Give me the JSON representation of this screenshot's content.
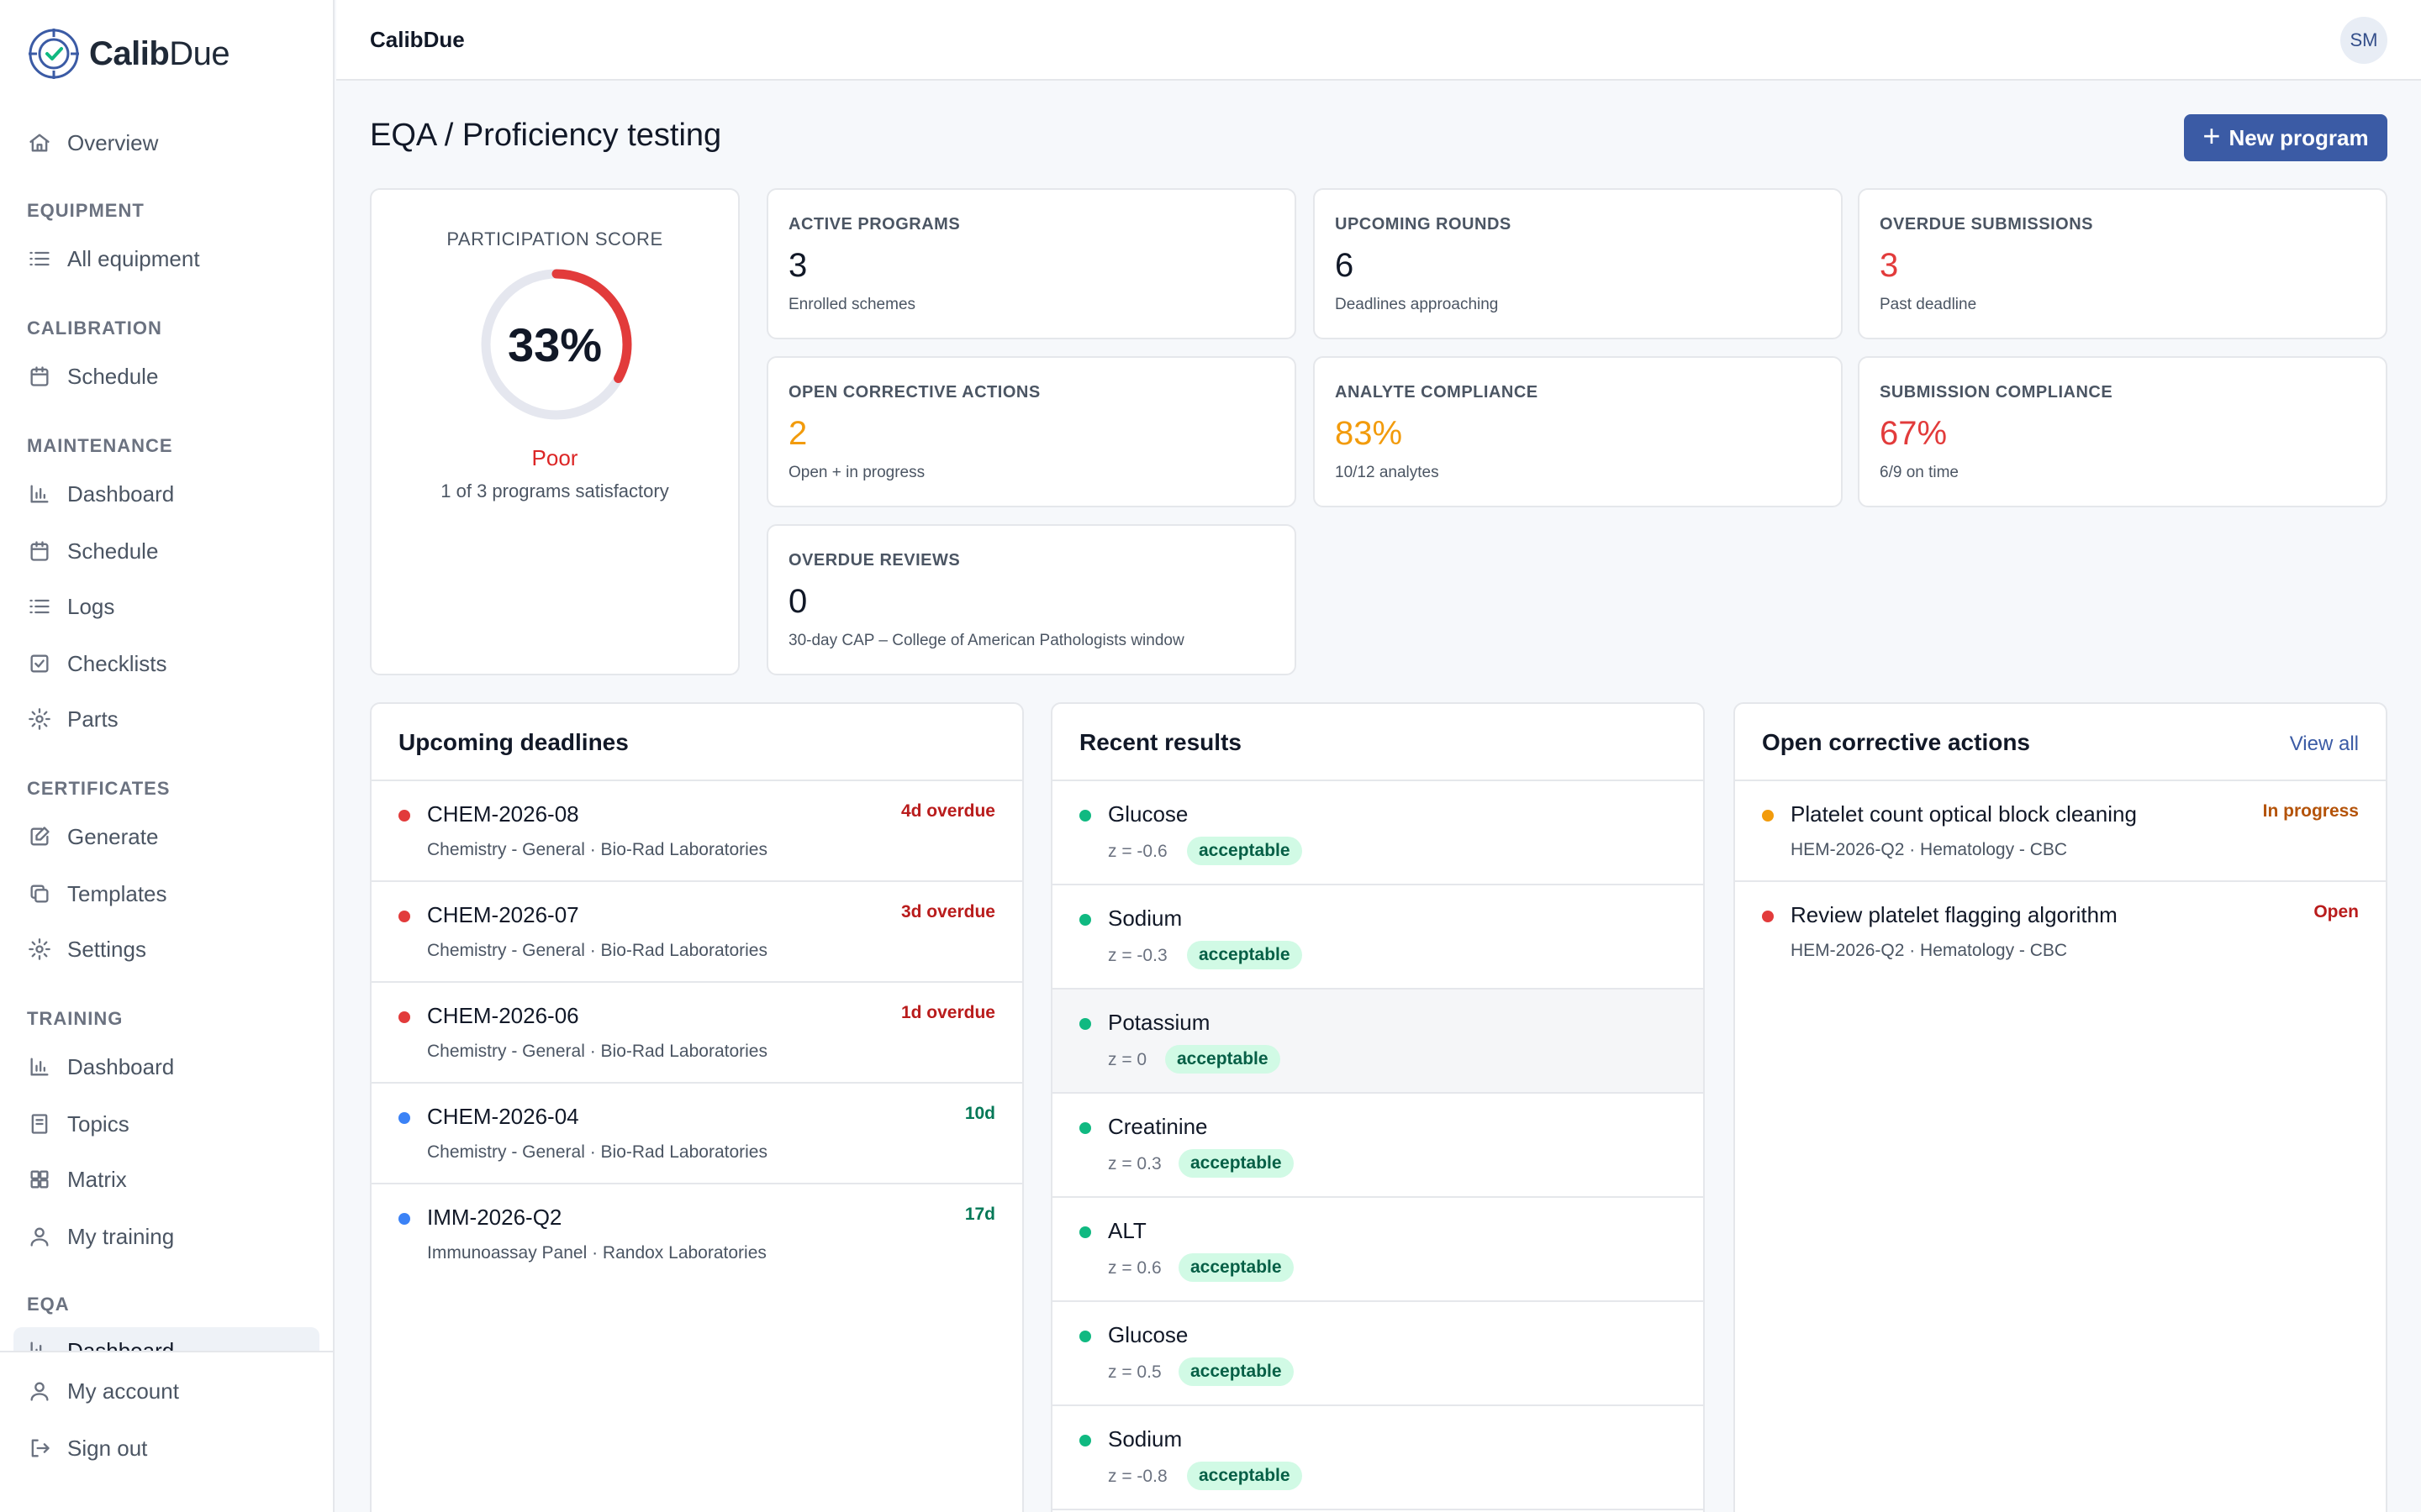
{
  "brand": {
    "name_bold": "Calib",
    "name_light": "Due"
  },
  "sidebar": {
    "overview": "Overview",
    "sections": {
      "equipment": "EQUIPMENT",
      "calibration": "CALIBRATION",
      "maintenance": "MAINTENANCE",
      "certificates": "CERTIFICATES",
      "training": "TRAINING",
      "eqa": "EQA"
    },
    "items": {
      "all_equipment": "All equipment",
      "cal_schedule": "Schedule",
      "maint_dashboard": "Dashboard",
      "maint_schedule": "Schedule",
      "logs": "Logs",
      "checklists": "Checklists",
      "parts": "Parts",
      "generate": "Generate",
      "templates": "Templates",
      "settings": "Settings",
      "train_dashboard": "Dashboard",
      "topics": "Topics",
      "matrix": "Matrix",
      "my_training": "My training",
      "eqa_dashboard": "Dashboard"
    },
    "bottom": {
      "my_account": "My account",
      "sign_out": "Sign out"
    }
  },
  "header": {
    "title": "CalibDue",
    "avatar": "SM"
  },
  "page": {
    "title": "EQA / Proficiency testing",
    "new_button": "New program"
  },
  "score": {
    "label": "PARTICIPATION SCORE",
    "value": "33%",
    "fraction": 0.33,
    "rating": "Poor",
    "subtitle": "1 of 3 programs satisfactory",
    "color": "#e23b3b"
  },
  "stats": {
    "active_programs": {
      "label": "ACTIVE PROGRAMS",
      "value": "3",
      "sub": "Enrolled schemes"
    },
    "upcoming_rounds": {
      "label": "UPCOMING ROUNDS",
      "value": "6",
      "sub": "Deadlines approaching"
    },
    "overdue_submissions": {
      "label": "OVERDUE SUBMISSIONS",
      "value": "3",
      "sub": "Past deadline"
    },
    "open_corrective": {
      "label": "OPEN CORRECTIVE ACTIONS",
      "value": "2",
      "sub": "Open + in progress"
    },
    "analyte_compliance": {
      "label": "ANALYTE COMPLIANCE",
      "value": "83%",
      "sub": "10/12 analytes"
    },
    "submission_compliance": {
      "label": "SUBMISSION COMPLIANCE",
      "value": "67%",
      "sub": "6/9 on time"
    },
    "overdue_reviews": {
      "label": "OVERDUE REVIEWS",
      "value": "0",
      "sub": "30-day CAP – College of American Pathologists window"
    }
  },
  "deadlines": {
    "title": "Upcoming deadlines",
    "rows": [
      {
        "code": "CHEM-2026-08",
        "detail": "Chemistry - General · Bio-Rad Laboratories",
        "due": "4d overdue",
        "status": "overdue"
      },
      {
        "code": "CHEM-2026-07",
        "detail": "Chemistry - General · Bio-Rad Laboratories",
        "due": "3d overdue",
        "status": "overdue"
      },
      {
        "code": "CHEM-2026-06",
        "detail": "Chemistry - General · Bio-Rad Laboratories",
        "due": "1d overdue",
        "status": "overdue"
      },
      {
        "code": "CHEM-2026-04",
        "detail": "Chemistry - General · Bio-Rad Laboratories",
        "due": "10d",
        "status": "upcoming"
      },
      {
        "code": "IMM-2026-Q2",
        "detail": "Immunoassay Panel · Randox Laboratories",
        "due": "17d",
        "status": "upcoming"
      }
    ]
  },
  "results": {
    "title": "Recent results",
    "rows": [
      {
        "analyte": "Glucose",
        "z": "z = -0.6",
        "result": "acceptable"
      },
      {
        "analyte": "Sodium",
        "z": "z = -0.3",
        "result": "acceptable"
      },
      {
        "analyte": "Potassium",
        "z": "z = 0",
        "result": "acceptable"
      },
      {
        "analyte": "Creatinine",
        "z": "z = 0.3",
        "result": "acceptable"
      },
      {
        "analyte": "ALT",
        "z": "z = 0.6",
        "result": "acceptable"
      },
      {
        "analyte": "Glucose",
        "z": "z = 0.5",
        "result": "acceptable"
      },
      {
        "analyte": "Sodium",
        "z": "z = -0.8",
        "result": "acceptable"
      }
    ]
  },
  "corrective": {
    "title": "Open corrective actions",
    "view_all": "View all",
    "rows": [
      {
        "title": "Platelet count optical block cleaning",
        "detail": "HEM-2026-Q2 · Hematology - CBC",
        "status": "In progress",
        "color": "#f29b0c"
      },
      {
        "title": "Review platelet flagging algorithm",
        "detail": "HEM-2026-Q2 · Hematology - CBC",
        "status": "Open",
        "color": "#e23b3b"
      }
    ]
  },
  "colors": {
    "accent": "#3b5ba5",
    "overdue": "#e23b3b",
    "overdue_text": "#b91c1c",
    "upcoming": "#3b82f6",
    "upcoming_text": "#047857",
    "acceptable": "#10b981",
    "warning": "#f29b0c"
  }
}
